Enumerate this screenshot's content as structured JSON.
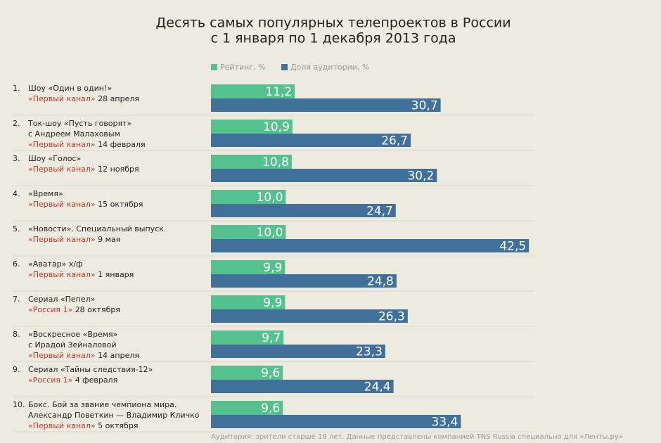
{
  "chart_data": {
    "type": "bar",
    "orientation": "horizontal",
    "title": [
      "Десять самых популярных телепроектов в России",
      "с 1 января по 1 декабря 2013 года"
    ],
    "categories": [
      {
        "rank": "1.",
        "lines": [
          "Шоу «Один в один!»"
        ],
        "channel": "«Первый канал»",
        "date": "28 апреля"
      },
      {
        "rank": "2.",
        "lines": [
          "Ток-шоу «Пусть говорят»",
          "с Андреем Малаховым"
        ],
        "channel": "«Первый канал»",
        "date": "14 февраля"
      },
      {
        "rank": "3.",
        "lines": [
          "Шоу «Голос»"
        ],
        "channel": "«Первый канал»",
        "date": "12 ноября"
      },
      {
        "rank": "4.",
        "lines": [
          "«Время»"
        ],
        "channel": "«Первый канал»",
        "date": "15 октября"
      },
      {
        "rank": "5.",
        "lines": [
          "«Новости». Специальный выпуск"
        ],
        "channel": "«Первый канал»",
        "date": "9 мая"
      },
      {
        "rank": "6.",
        "lines": [
          "«Аватар» х/ф"
        ],
        "channel": "«Первый канал»",
        "date": "1 января"
      },
      {
        "rank": "7.",
        "lines": [
          "Сериал «Пепел»"
        ],
        "channel": "«Россия 1»",
        "date": "28 октября"
      },
      {
        "rank": "8.",
        "lines": [
          "«Воскресное «Время»",
          "с Ирадой Зейналовой"
        ],
        "channel": "«Первый канал»",
        "date": "14 апреля"
      },
      {
        "rank": "9.",
        "lines": [
          "Сериал «Тайны следствия-12»"
        ],
        "channel": "«Россия 1»",
        "date": "4 февраля"
      },
      {
        "rank": "10.",
        "lines": [
          "Бокс. Бой за звание чемпиона мира.",
          "Александр Поветкин — Владимир Кличко"
        ],
        "channel": "«Первый канал»",
        "date": "5 октября"
      }
    ],
    "series": [
      {
        "name": "Рейтинг, %",
        "color": "#55c18f",
        "values": [
          11.2,
          10.9,
          10.8,
          10.0,
          10.0,
          9.9,
          9.9,
          9.7,
          9.6,
          9.6
        ],
        "value_labels": [
          "11,2",
          "10,9",
          "10,8",
          "10,0",
          "10,0",
          "9,9",
          "9,9",
          "9,7",
          "9,6",
          "9,6"
        ]
      },
      {
        "name": "Доля аудитории, %",
        "color": "#41709a",
        "values": [
          30.7,
          26.7,
          30.2,
          24.7,
          42.5,
          24.8,
          26.3,
          23.3,
          24.4,
          33.4
        ],
        "value_labels": [
          "30,7",
          "26,7",
          "30,2",
          "24,7",
          "42,5",
          "24,8",
          "26,3",
          "23,3",
          "24,4",
          "33,4"
        ]
      }
    ],
    "channel_color": "#c0392b",
    "note": "Аудитория: зрители старше 18 лет. Данные представлены компанией TNS Russia специально для «Ленты.ру»"
  }
}
